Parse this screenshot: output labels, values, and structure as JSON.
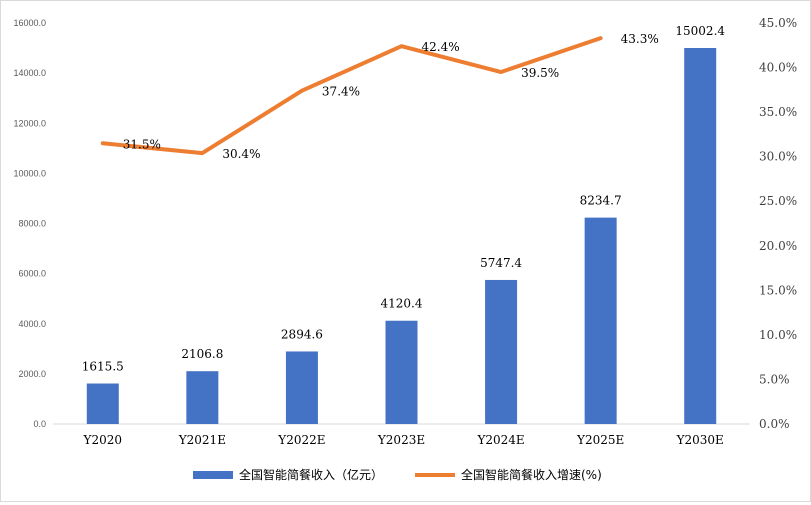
{
  "chart_data": {
    "type": "bar",
    "categories": [
      "Y2020",
      "Y2021E",
      "Y2022E",
      "Y2023E",
      "Y2024E",
      "Y2025E",
      "Y2030E"
    ],
    "series": [
      {
        "name": "全国智能简餐收入（亿元）",
        "type": "bar",
        "axis": "left",
        "values": [
          1615.5,
          2106.8,
          2894.6,
          4120.4,
          5747.4,
          8234.7,
          15002.4
        ],
        "labels": [
          "1615.5",
          "2106.8",
          "2894.6",
          "4120.4",
          "5747.4",
          "8234.7",
          "15002.4"
        ],
        "color": "#4472c4"
      },
      {
        "name": "全国智能简餐收入增速(%)",
        "type": "line",
        "axis": "right",
        "values": [
          31.5,
          30.4,
          37.4,
          42.4,
          39.5,
          43.3,
          null
        ],
        "labels": [
          "31.5%",
          "30.4%",
          "37.4%",
          "42.4%",
          "39.5%",
          "43.3%",
          ""
        ],
        "color": "#ed7d31"
      }
    ],
    "y_left": {
      "ylim": [
        0,
        16000
      ],
      "ticks": [
        0,
        2000,
        4000,
        6000,
        8000,
        10000,
        12000,
        14000,
        16000
      ],
      "tick_labels": [
        "0.0",
        "2000.0",
        "4000.0",
        "6000.0",
        "8000.0",
        "10000.0",
        "12000.0",
        "14000.0",
        "16000.0"
      ]
    },
    "y_right": {
      "ylim": [
        0,
        45
      ],
      "ticks": [
        0,
        5,
        10,
        15,
        20,
        25,
        30,
        35,
        40,
        45
      ],
      "tick_labels": [
        "0.0%",
        "5.0%",
        "10.0%",
        "15.0%",
        "20.0%",
        "25.0%",
        "30.0%",
        "35.0%",
        "40.0%",
        "45.0%"
      ]
    },
    "grid": false,
    "legend": "bottom",
    "title": "",
    "xlabel": "",
    "ylabel": ""
  }
}
